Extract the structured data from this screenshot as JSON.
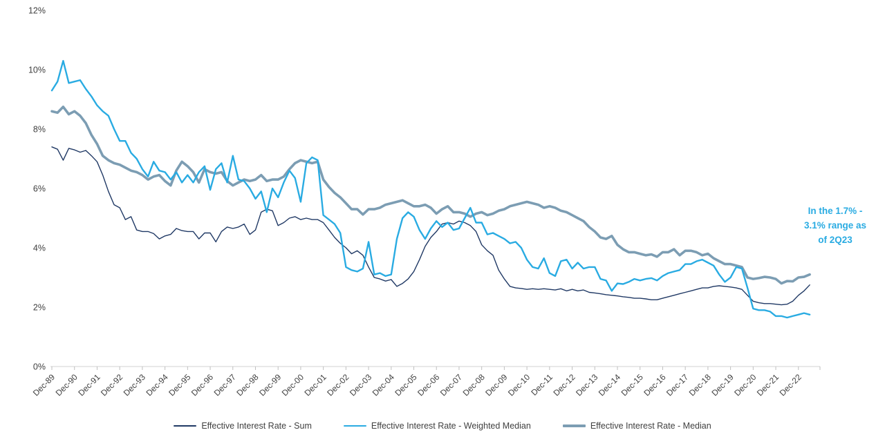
{
  "chart_data": {
    "type": "line",
    "title": "",
    "xlabel": "",
    "ylabel": "",
    "ylim": [
      0,
      12
    ],
    "grid": false,
    "legend_position": "bottom",
    "y_tick_labels": [
      "0%",
      "2%",
      "4%",
      "6%",
      "8%",
      "10%",
      "12%"
    ],
    "y_tick_values": [
      0,
      2,
      4,
      6,
      8,
      10,
      12
    ],
    "x_tick_labels": [
      "Dec-89",
      "Dec-90",
      "Dec-91",
      "Dec-92",
      "Dec-93",
      "Dec-94",
      "Dec-95",
      "Dec-96",
      "Dec-97",
      "Dec-98",
      "Dec-99",
      "Dec-00",
      "Dec-01",
      "Dec-02",
      "Dec-03",
      "Dec-04",
      "Dec-05",
      "Dec-06",
      "Dec-07",
      "Dec-08",
      "Dec-09",
      "Dec-10",
      "Dec-11",
      "Dec-12",
      "Dec-13",
      "Dec-14",
      "Dec-15",
      "Dec-16",
      "Dec-17",
      "Dec-18",
      "Dec-19",
      "Dec-20",
      "Dec-21",
      "Dec-22"
    ],
    "points_per_year": 4,
    "x_start": "Dec-89",
    "x_end": "2Q23",
    "axis_color": "#D9D9D9",
    "tick_color": "#BFBFBF",
    "label_color": "#404040",
    "annotation": {
      "lines": [
        "In the 1.7% -",
        "3.1% range as",
        "of 2Q23"
      ],
      "color": "#29ABE2"
    },
    "series": [
      {
        "key": "sum",
        "name": "Effective Interest Rate - Sum",
        "color": "#1F3864",
        "stroke_width": 1.4,
        "values": [
          7.4,
          7.32,
          6.95,
          7.35,
          7.3,
          7.22,
          7.28,
          7.1,
          6.9,
          6.45,
          5.9,
          5.45,
          5.35,
          4.95,
          5.05,
          4.6,
          4.55,
          4.55,
          4.48,
          4.3,
          4.4,
          4.45,
          4.65,
          4.58,
          4.55,
          4.55,
          4.3,
          4.5,
          4.5,
          4.2,
          4.55,
          4.7,
          4.65,
          4.7,
          4.8,
          4.45,
          4.6,
          5.2,
          5.3,
          5.25,
          4.75,
          4.85,
          5.0,
          5.05,
          4.95,
          5.0,
          4.95,
          4.95,
          4.85,
          4.6,
          4.35,
          4.15,
          4.0,
          3.8,
          3.9,
          3.75,
          3.35,
          3.0,
          2.95,
          2.88,
          2.93,
          2.7,
          2.8,
          2.95,
          3.2,
          3.6,
          4.05,
          4.35,
          4.55,
          4.8,
          4.85,
          4.8,
          4.9,
          4.85,
          4.75,
          4.55,
          4.1,
          3.9,
          3.75,
          3.25,
          2.95,
          2.7,
          2.65,
          2.63,
          2.6,
          2.62,
          2.6,
          2.62,
          2.6,
          2.58,
          2.62,
          2.55,
          2.6,
          2.55,
          2.58,
          2.5,
          2.48,
          2.45,
          2.42,
          2.4,
          2.38,
          2.35,
          2.33,
          2.3,
          2.3,
          2.28,
          2.25,
          2.25,
          2.3,
          2.35,
          2.4,
          2.45,
          2.5,
          2.55,
          2.6,
          2.65,
          2.65,
          2.7,
          2.72,
          2.7,
          2.68,
          2.65,
          2.6,
          2.4,
          2.2,
          2.15,
          2.12,
          2.12,
          2.1,
          2.08,
          2.1,
          2.2,
          2.4,
          2.55,
          2.75
        ]
      },
      {
        "key": "weighted-median",
        "name": "Effective Interest Rate - Weighted Median",
        "color": "#29ABE2",
        "stroke_width": 2.4,
        "values": [
          9.3,
          9.6,
          10.3,
          9.55,
          9.6,
          9.65,
          9.35,
          9.1,
          8.8,
          8.6,
          8.45,
          8.0,
          7.6,
          7.6,
          7.2,
          7.0,
          6.65,
          6.4,
          6.9,
          6.6,
          6.55,
          6.3,
          6.55,
          6.2,
          6.45,
          6.2,
          6.55,
          6.75,
          5.95,
          6.65,
          6.85,
          6.2,
          7.1,
          6.3,
          6.25,
          6.0,
          5.65,
          5.9,
          5.2,
          6.0,
          5.7,
          6.2,
          6.6,
          6.35,
          5.55,
          6.85,
          7.05,
          6.95,
          5.1,
          4.95,
          4.8,
          4.5,
          3.35,
          3.25,
          3.2,
          3.3,
          4.2,
          3.1,
          3.15,
          3.05,
          3.1,
          4.3,
          5.0,
          5.2,
          5.05,
          4.6,
          4.3,
          4.65,
          4.9,
          4.7,
          4.85,
          4.6,
          4.65,
          5.0,
          5.35,
          4.85,
          4.85,
          4.45,
          4.5,
          4.4,
          4.3,
          4.15,
          4.2,
          4.0,
          3.6,
          3.35,
          3.3,
          3.65,
          3.15,
          3.05,
          3.55,
          3.6,
          3.3,
          3.5,
          3.3,
          3.35,
          3.35,
          2.95,
          2.9,
          2.55,
          2.8,
          2.78,
          2.85,
          2.95,
          2.9,
          2.95,
          2.98,
          2.9,
          3.05,
          3.15,
          3.2,
          3.25,
          3.45,
          3.45,
          3.55,
          3.6,
          3.5,
          3.4,
          3.1,
          2.85,
          3.0,
          3.35,
          3.3,
          2.65,
          1.95,
          1.9,
          1.9,
          1.85,
          1.7,
          1.7,
          1.65,
          1.7,
          1.75,
          1.8,
          1.75
        ]
      },
      {
        "key": "median",
        "name": "Effective Interest Rate - Median",
        "color": "#7C9DB3",
        "stroke_width": 3.6,
        "values": [
          8.6,
          8.55,
          8.75,
          8.5,
          8.6,
          8.45,
          8.2,
          7.8,
          7.5,
          7.1,
          6.95,
          6.85,
          6.8,
          6.7,
          6.6,
          6.55,
          6.45,
          6.3,
          6.4,
          6.45,
          6.25,
          6.1,
          6.6,
          6.9,
          6.75,
          6.55,
          6.2,
          6.65,
          6.55,
          6.5,
          6.55,
          6.25,
          6.1,
          6.2,
          6.3,
          6.25,
          6.3,
          6.45,
          6.25,
          6.3,
          6.3,
          6.4,
          6.65,
          6.85,
          6.95,
          6.9,
          6.85,
          6.9,
          6.3,
          6.05,
          5.85,
          5.7,
          5.5,
          5.3,
          5.3,
          5.12,
          5.3,
          5.3,
          5.35,
          5.45,
          5.5,
          5.55,
          5.6,
          5.5,
          5.4,
          5.4,
          5.45,
          5.35,
          5.15,
          5.3,
          5.4,
          5.2,
          5.2,
          5.15,
          5.05,
          5.15,
          5.2,
          5.1,
          5.15,
          5.25,
          5.3,
          5.4,
          5.45,
          5.5,
          5.55,
          5.5,
          5.45,
          5.35,
          5.4,
          5.35,
          5.25,
          5.2,
          5.1,
          5.0,
          4.9,
          4.7,
          4.55,
          4.35,
          4.3,
          4.4,
          4.1,
          3.95,
          3.85,
          3.85,
          3.8,
          3.75,
          3.78,
          3.7,
          3.85,
          3.85,
          3.95,
          3.75,
          3.9,
          3.9,
          3.85,
          3.75,
          3.8,
          3.65,
          3.55,
          3.45,
          3.45,
          3.4,
          3.35,
          3.0,
          2.95,
          2.98,
          3.02,
          3.0,
          2.95,
          2.8,
          2.88,
          2.87,
          3.0,
          3.02,
          3.1
        ]
      }
    ]
  }
}
